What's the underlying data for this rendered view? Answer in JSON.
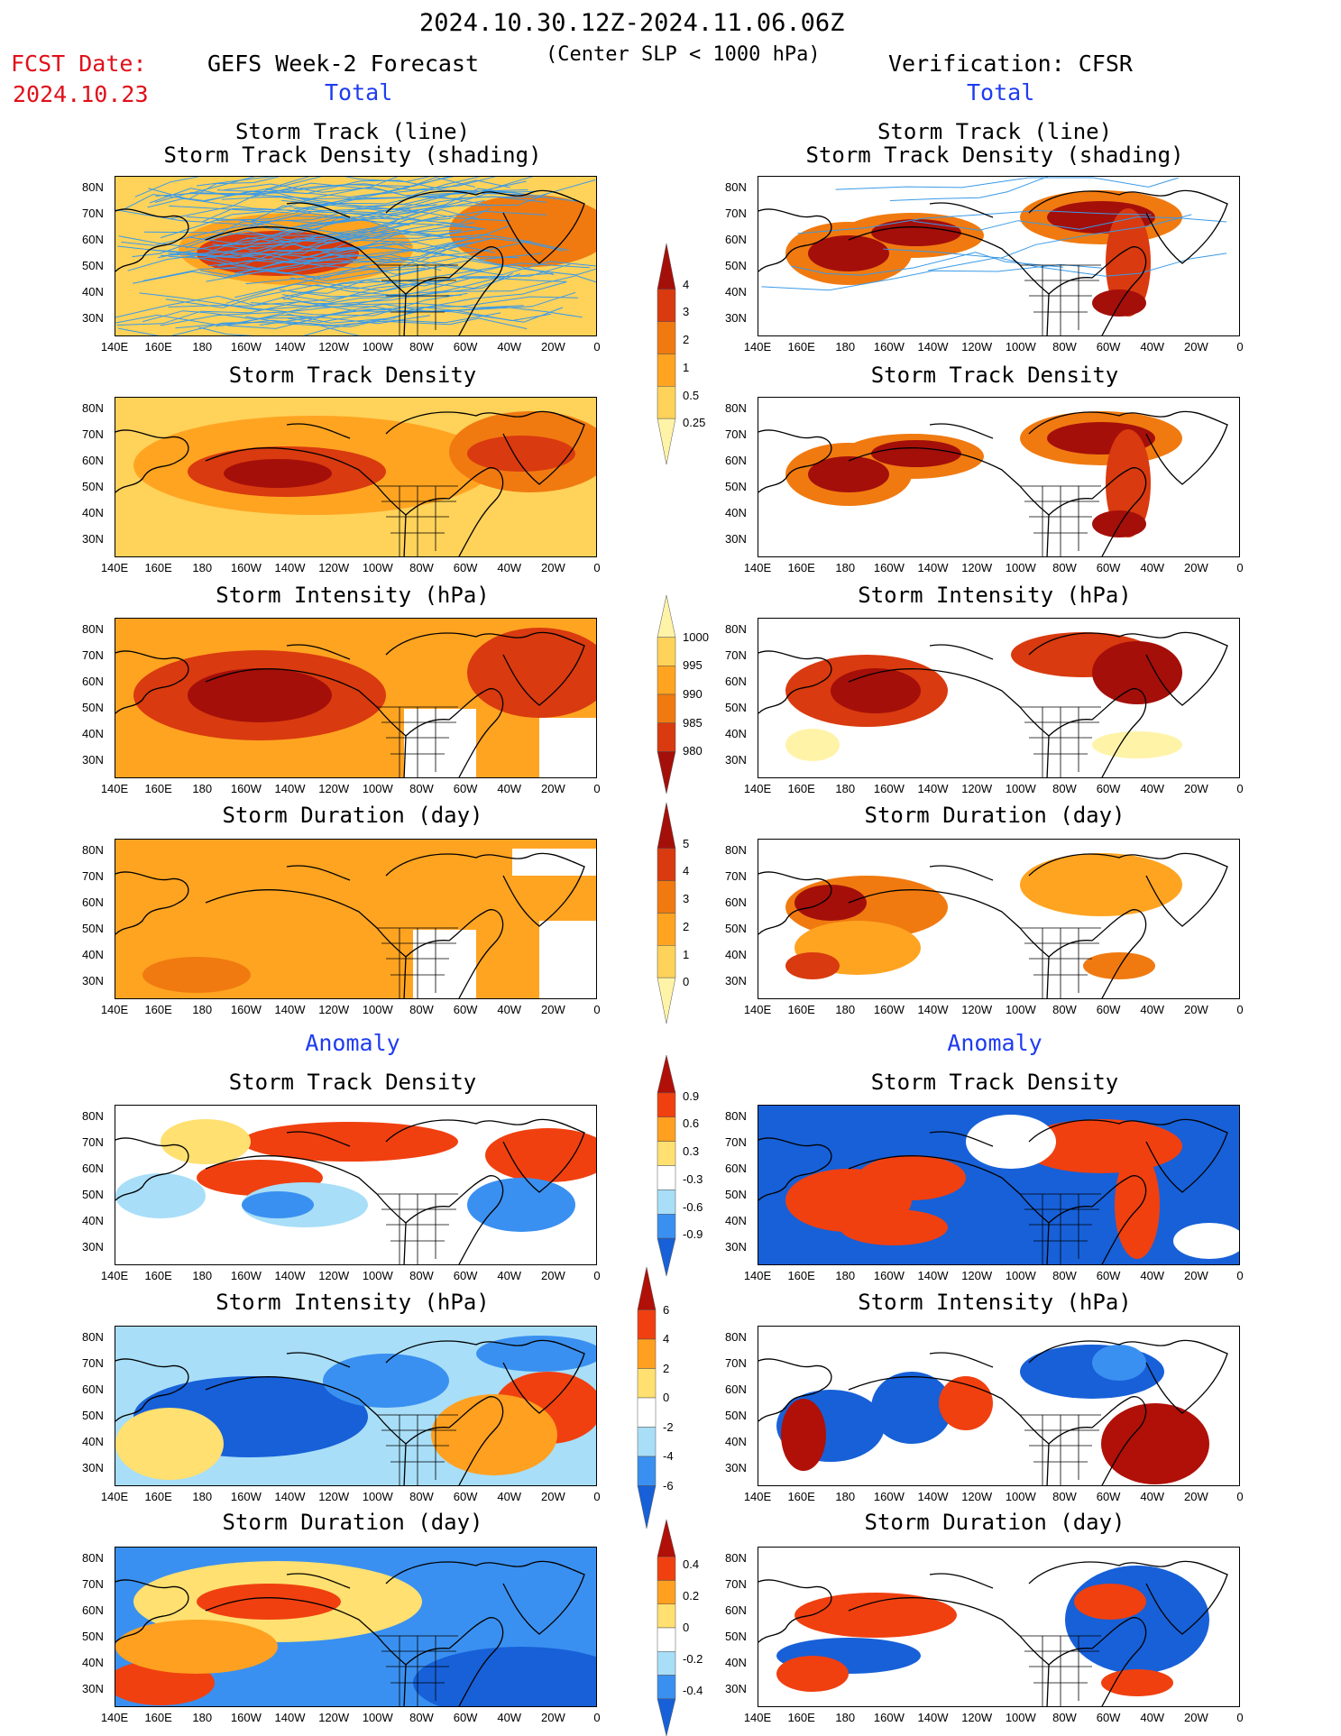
{
  "header": {
    "period": "2024.10.30.12Z-2024.11.06.06Z",
    "fcst_label": "FCST Date:",
    "fcst_date": "2024.10.23",
    "left_title": "GEFS Week-2 Forecast",
    "criterion": "(Center SLP < 1000 hPa)",
    "right_title": "Verification: CFSR",
    "total_left": "Total",
    "total_right": "Total",
    "anomaly_left": "Anomaly",
    "anomaly_right": "Anomaly"
  },
  "panel_titles": {
    "track_line": "Storm Track (line)",
    "track_shading": "Storm Track Density (shading)",
    "density": "Storm Track Density",
    "intensity": "Storm Intensity (hPa)",
    "duration": "Storm Duration (day)"
  },
  "axes": {
    "lat_labels": [
      "80N",
      "70N",
      "60N",
      "50N",
      "40N",
      "30N"
    ],
    "lon_labels": [
      "140E",
      "160E",
      "180",
      "160W",
      "140W",
      "120W",
      "100W",
      "80W",
      "60W",
      "40W",
      "20W",
      "0"
    ]
  },
  "colorbars": {
    "density_total": [
      "4",
      "3",
      "2",
      "1",
      "0.5",
      "0.25"
    ],
    "intensity_total": [
      "1000",
      "995",
      "990",
      "985",
      "980"
    ],
    "duration_total": [
      "5",
      "4",
      "3",
      "2",
      "1",
      "0"
    ],
    "density_anom": [
      "0.9",
      "0.6",
      "0.3",
      "-0.3",
      "-0.6",
      "-0.9"
    ],
    "intensity_anom": [
      "6",
      "4",
      "2",
      "0",
      "-2",
      "-4",
      "-6"
    ],
    "duration_anom": [
      "0.4",
      "0.2",
      "0",
      "-0.2",
      "-0.4"
    ]
  },
  "colors": {
    "warm_scale": [
      "#fff3a8",
      "#ffd25a",
      "#ffa421",
      "#f07a10",
      "#d93a0f",
      "#a40f0a"
    ],
    "anom_scale": [
      "#1760d8",
      "#3a90f0",
      "#a8def8",
      "#ffffff",
      "#ffe070",
      "#ffa020",
      "#f04010",
      "#b01008"
    ],
    "title_red": "#e0101a",
    "title_blue": "#1f3cf0",
    "track_blue": "#3a9ae8"
  }
}
